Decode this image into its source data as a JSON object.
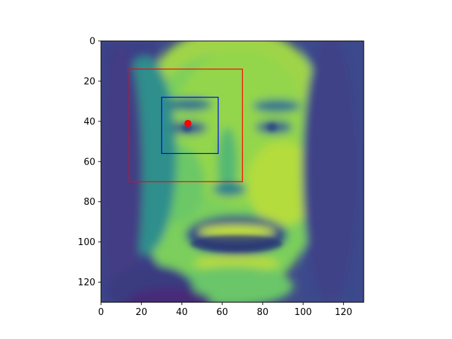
{
  "chart_data": {
    "type": "heatmap",
    "title": "",
    "xlabel": "",
    "ylabel": "",
    "xlim": [
      0,
      130
    ],
    "ylim": [
      130,
      0
    ],
    "x_ticks": [
      0,
      20,
      40,
      60,
      80,
      100,
      120
    ],
    "y_ticks": [
      0,
      20,
      40,
      60,
      80,
      100,
      120
    ],
    "x_tick_labels": [
      "0",
      "20",
      "40",
      "60",
      "80",
      "100",
      "120"
    ],
    "y_tick_labels": [
      "0",
      "20",
      "40",
      "60",
      "80",
      "100",
      "120"
    ],
    "colormap": "viridis",
    "image_content": "grayscale face photograph",
    "annotations": [
      {
        "name": "outer-box",
        "shape": "rectangle",
        "x0": 14,
        "y0": 14,
        "x1": 70,
        "y1": 70,
        "color": "#ff0000"
      },
      {
        "name": "inner-box",
        "shape": "rectangle",
        "x0": 30,
        "y0": 28,
        "x1": 58,
        "y1": 56,
        "color": "#0000ff"
      },
      {
        "name": "center-point",
        "shape": "point",
        "x": 43,
        "y": 41,
        "color": "#ff0000"
      }
    ]
  }
}
